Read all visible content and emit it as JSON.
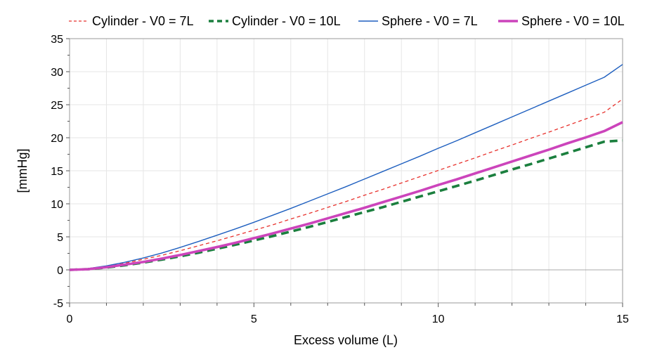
{
  "chart_data": {
    "type": "line",
    "title": "",
    "xlabel": "Excess volume (L)",
    "ylabel": "[mmHg]",
    "xlim": [
      0,
      15
    ],
    "ylim": [
      -5,
      35
    ],
    "x_ticks": [
      "0",
      "5",
      "10",
      "15"
    ],
    "y_ticks": [
      "-5",
      "0",
      "5",
      "10",
      "15",
      "20",
      "25",
      "30",
      "35"
    ],
    "grid": true,
    "legend_position": "top",
    "x": [
      0,
      0.5,
      1,
      1.5,
      2,
      2.5,
      3,
      3.5,
      4,
      4.5,
      5,
      5.5,
      6,
      6.5,
      7,
      7.5,
      8,
      8.5,
      9,
      9.5,
      10,
      10.5,
      11,
      11.5,
      12,
      12.5,
      13,
      13.5,
      14,
      14.5,
      15
    ],
    "series": [
      {
        "name": "Cylinder - V0 = 7L",
        "color": "#e8322d",
        "style": "dashed-thin",
        "values": [
          0,
          0.15,
          0.5,
          1.0,
          1.6,
          2.2,
          2.9,
          3.65,
          4.4,
          5.2,
          6.0,
          6.8,
          7.7,
          8.55,
          9.45,
          10.35,
          11.3,
          12.2,
          13.15,
          14.1,
          15.05,
          16.0,
          16.95,
          17.95,
          18.9,
          19.9,
          20.85,
          21.85,
          22.85,
          23.85,
          25.85
        ]
      },
      {
        "name": "Cylinder - V0 = 10L",
        "color": "#1b7f3e",
        "style": "dashed-thick",
        "values": [
          0,
          0.1,
          0.35,
          0.7,
          1.1,
          1.55,
          2.05,
          2.6,
          3.2,
          3.8,
          4.45,
          5.1,
          5.8,
          6.5,
          7.25,
          8.0,
          8.75,
          9.5,
          10.3,
          11.1,
          11.9,
          12.7,
          13.5,
          14.35,
          15.2,
          16.0,
          16.85,
          17.7,
          18.55,
          19.4,
          19.6
        ]
      },
      {
        "name": "Sphere - V0 = 7L",
        "color": "#1e5fbf",
        "style": "solid-thin",
        "values": [
          0,
          0.2,
          0.6,
          1.15,
          1.8,
          2.55,
          3.4,
          4.3,
          5.25,
          6.2,
          7.2,
          8.25,
          9.3,
          10.4,
          11.5,
          12.6,
          13.75,
          14.9,
          16.05,
          17.2,
          18.4,
          19.55,
          20.75,
          21.95,
          23.15,
          24.35,
          25.55,
          26.75,
          27.95,
          29.15,
          31.1
        ]
      },
      {
        "name": "Sphere - V0 = 10L",
        "color": "#cc44bb",
        "style": "solid-thick",
        "values": [
          0,
          0.1,
          0.4,
          0.8,
          1.2,
          1.7,
          2.25,
          2.85,
          3.45,
          4.1,
          4.8,
          5.5,
          6.25,
          7.0,
          7.8,
          8.6,
          9.4,
          10.25,
          11.1,
          11.95,
          12.85,
          13.7,
          14.6,
          15.5,
          16.4,
          17.3,
          18.2,
          19.15,
          20.05,
          21.0,
          22.35
        ]
      }
    ]
  }
}
